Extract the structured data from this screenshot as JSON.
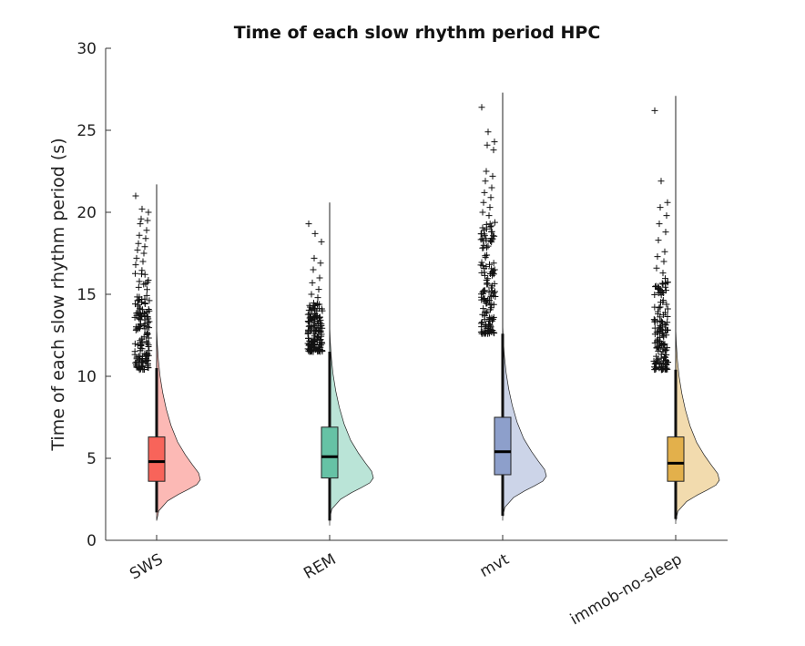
{
  "chart_data": {
    "type": "box-violin",
    "title": "Time of each slow rhythm period HPC",
    "xlabel": "",
    "ylabel": "Time of each slow rhythm period (s)",
    "ylim": [
      0,
      30
    ],
    "yticks": [
      0,
      5,
      10,
      15,
      20,
      25,
      30
    ],
    "grid": false,
    "categories": [
      "SWS",
      "REM",
      "mvt",
      "immob-no-sleep"
    ],
    "colors": {
      "SWS": "#f8645a",
      "REM": "#66c2a5",
      "mvt": "#8d9fcb",
      "immob-no-sleep": "#e3b04b"
    },
    "series": [
      {
        "category": "SWS",
        "whisker_low": 1.7,
        "q1": 3.6,
        "median": 4.8,
        "q3": 6.3,
        "whisker_high": 10.5,
        "range_max": 21.7,
        "outlier_band": [
          10.4,
          16.5
        ],
        "outliers": [
          21.0,
          20.2,
          20.0,
          19.6,
          19.5,
          19.3,
          18.9,
          18.6,
          18.4,
          18.1,
          17.9,
          17.7,
          17.5,
          17.2,
          17.0,
          16.8
        ]
      },
      {
        "category": "REM",
        "whisker_low": 1.2,
        "q1": 3.8,
        "median": 5.1,
        "q3": 6.9,
        "whisker_high": 11.5,
        "range_max": 20.6,
        "outlier_band": [
          11.5,
          14.5
        ],
        "outliers": [
          19.3,
          18.7,
          18.2,
          17.2,
          16.9,
          16.5,
          16.0,
          15.7,
          15.3,
          15.0,
          14.8
        ]
      },
      {
        "category": "mvt",
        "whisker_low": 1.5,
        "q1": 4.0,
        "median": 5.4,
        "q3": 7.5,
        "whisker_high": 12.6,
        "range_max": 27.3,
        "outlier_band": [
          12.6,
          19.5
        ],
        "outliers": [
          26.4,
          24.9,
          24.3,
          24.1,
          23.8,
          22.5,
          22.2,
          21.9,
          21.5,
          21.2,
          20.9,
          20.6,
          20.3,
          20.0,
          19.8
        ]
      },
      {
        "category": "immob-no-sleep",
        "whisker_low": 1.3,
        "q1": 3.6,
        "median": 4.7,
        "q3": 6.3,
        "whisker_high": 10.4,
        "range_max": 27.1,
        "outlier_band": [
          10.4,
          16.0
        ],
        "outliers": [
          26.2,
          21.9,
          20.6,
          20.3,
          19.8,
          19.3,
          18.8,
          18.3,
          17.6,
          17.3,
          17.0,
          16.6,
          16.3
        ]
      }
    ],
    "density_shape": [
      [
        1.2,
        0.0
      ],
      [
        1.8,
        0.05
      ],
      [
        2.4,
        0.25
      ],
      [
        2.8,
        0.5
      ],
      [
        3.1,
        0.72
      ],
      [
        3.4,
        0.92
      ],
      [
        3.7,
        1.0
      ],
      [
        4.1,
        0.96
      ],
      [
        4.6,
        0.82
      ],
      [
        5.2,
        0.66
      ],
      [
        6.0,
        0.48
      ],
      [
        7.0,
        0.33
      ],
      [
        8.0,
        0.22
      ],
      [
        9.0,
        0.14
      ],
      [
        10.0,
        0.08
      ],
      [
        11.0,
        0.04
      ],
      [
        12.0,
        0.015
      ],
      [
        13.0,
        0.0
      ]
    ]
  }
}
